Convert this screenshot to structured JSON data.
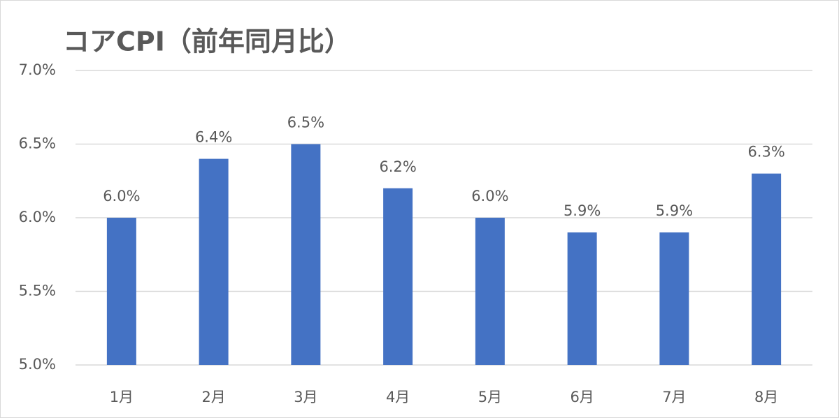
{
  "chart_data": {
    "type": "bar",
    "title": "コアCPI（前年同月比）",
    "categories": [
      "1月",
      "2月",
      "3月",
      "4月",
      "5月",
      "6月",
      "7月",
      "8月"
    ],
    "values": [
      6.0,
      6.4,
      6.5,
      6.2,
      6.0,
      5.9,
      5.9,
      6.3
    ],
    "value_labels": [
      "6.0%",
      "6.4%",
      "6.5%",
      "6.2%",
      "6.0%",
      "5.9%",
      "5.9%",
      "6.3%"
    ],
    "color": "#4472c4",
    "ylim": [
      5,
      7
    ],
    "yticks": [
      {
        "value": 5,
        "label": "5.0%"
      },
      {
        "value": 5.5,
        "label": "5.5%"
      },
      {
        "value": 6,
        "label": "6.0%"
      },
      {
        "value": 6.5,
        "label": "6.5%"
      },
      {
        "value": 7,
        "label": "7.0%"
      }
    ],
    "grid": true
  }
}
